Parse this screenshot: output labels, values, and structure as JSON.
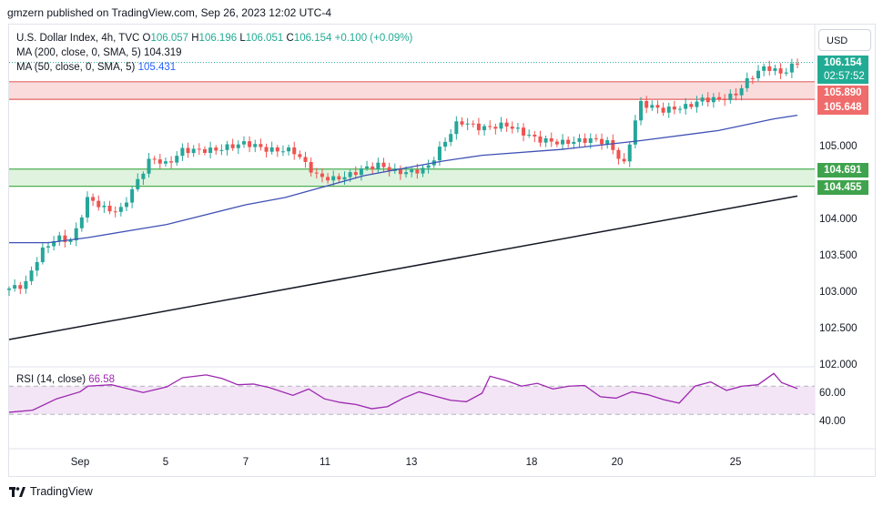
{
  "publisher": "gmzern published on TradingView.com, Sep 26, 2023 12:02 UTC-4",
  "legend": {
    "symbol": "U.S. Dollar Index, 4h, TVC",
    "o_label": "O",
    "o": "106.057",
    "h_label": "H",
    "h": "106.196",
    "l_label": "L",
    "l": "106.051",
    "c_label": "C",
    "c": "106.154",
    "change": "+0.100 (+0.09%)",
    "ma200_label": "MA (200, close, 0, SMA, 5)",
    "ma200": "104.319",
    "ma50_label": "MA (50, close, 0, SMA, 5)",
    "ma50": "105.431"
  },
  "rsi": {
    "label": "RSI (14, close)",
    "value": "66.58"
  },
  "currency_button": "USD",
  "price_ticks": [
    "105.000",
    "104.000",
    "103.500",
    "103.000",
    "102.500",
    "102.000"
  ],
  "rsi_ticks": [
    "60.00",
    "40.00"
  ],
  "tags": {
    "last_price": "106.154",
    "countdown": "02:57:52",
    "resistance_top": "105.890",
    "resistance_bottom": "105.648",
    "support_top": "104.691",
    "support_bottom": "104.455"
  },
  "x_ticks": [
    "Sep",
    "5",
    "7",
    "11",
    "13",
    "18",
    "20",
    "25"
  ],
  "footer_brand": "TradingView",
  "colors": {
    "up": "#26a69a",
    "down": "#ef5350",
    "ma50": "#3f51b5",
    "ma200": "#131722",
    "rsi_line": "#9c27b0",
    "rsi_band": "#f3e5f5",
    "resistance_zone": "#fbdcdc",
    "support_zone": "#dff3df"
  },
  "chart_data": {
    "type": "candlestick",
    "y_range": [
      102.0,
      106.3
    ],
    "zones": [
      {
        "name": "resistance",
        "low": 105.648,
        "high": 105.89
      },
      {
        "name": "support",
        "low": 104.455,
        "high": 104.691
      }
    ],
    "ma200": [
      [
        0,
        102.35
      ],
      [
        1,
        104.32
      ]
    ],
    "ma50_points": [
      [
        0,
        103.68
      ],
      [
        0.05,
        103.68
      ],
      [
        0.1,
        103.75
      ],
      [
        0.2,
        103.93
      ],
      [
        0.3,
        104.2
      ],
      [
        0.35,
        104.3
      ],
      [
        0.45,
        104.6
      ],
      [
        0.55,
        104.8
      ],
      [
        0.6,
        104.88
      ],
      [
        0.7,
        104.96
      ],
      [
        0.8,
        105.08
      ],
      [
        0.9,
        105.22
      ],
      [
        0.97,
        105.38
      ],
      [
        1,
        105.43
      ]
    ],
    "rsi_points": [
      [
        0,
        33
      ],
      [
        0.03,
        36
      ],
      [
        0.06,
        52
      ],
      [
        0.09,
        62
      ],
      [
        0.1,
        70
      ],
      [
        0.13,
        72
      ],
      [
        0.17,
        61
      ],
      [
        0.2,
        69
      ],
      [
        0.22,
        82
      ],
      [
        0.25,
        86
      ],
      [
        0.27,
        81
      ],
      [
        0.29,
        72
      ],
      [
        0.31,
        73
      ],
      [
        0.33,
        68
      ],
      [
        0.36,
        57
      ],
      [
        0.38,
        66
      ],
      [
        0.4,
        52
      ],
      [
        0.42,
        47
      ],
      [
        0.44,
        44
      ],
      [
        0.46,
        38
      ],
      [
        0.48,
        41
      ],
      [
        0.5,
        53
      ],
      [
        0.52,
        62
      ],
      [
        0.54,
        56
      ],
      [
        0.56,
        50
      ],
      [
        0.58,
        48
      ],
      [
        0.6,
        60
      ],
      [
        0.61,
        84
      ],
      [
        0.63,
        78
      ],
      [
        0.65,
        70
      ],
      [
        0.67,
        74
      ],
      [
        0.69,
        66
      ],
      [
        0.71,
        70
      ],
      [
        0.73,
        71
      ],
      [
        0.75,
        55
      ],
      [
        0.77,
        53
      ],
      [
        0.79,
        62
      ],
      [
        0.81,
        58
      ],
      [
        0.83,
        51
      ],
      [
        0.85,
        46
      ],
      [
        0.87,
        70
      ],
      [
        0.89,
        76
      ],
      [
        0.91,
        64
      ],
      [
        0.93,
        70
      ],
      [
        0.95,
        72
      ],
      [
        0.97,
        88
      ],
      [
        0.98,
        75
      ],
      [
        1,
        66.58
      ]
    ],
    "rsi_bands": [
      30,
      70
    ],
    "last_close": 106.154
  }
}
